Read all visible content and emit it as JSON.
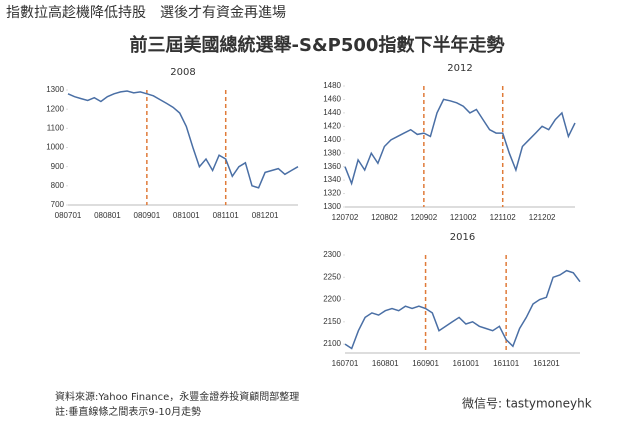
{
  "headline": "指數拉高趁機降低持股　選後才有資金再進場",
  "title": "前三屆美國總統選舉-S&P500指數下半年走勢",
  "footnotes": [
    "資料來源:Yahoo Finance，永豐金證券投資顧問部整理",
    "註:垂直線條之間表示9-10月走勢"
  ],
  "watermark": "微信号: tastymoneyhk",
  "chart_data": [
    {
      "type": "line",
      "title": "2008",
      "color": "#4a6fa5",
      "vline_color": "#e07b39",
      "vlines": [
        12,
        24
      ],
      "categories": [
        "080701",
        null,
        null,
        null,
        null,
        null,
        "080801",
        null,
        null,
        null,
        null,
        null,
        "080901",
        null,
        null,
        null,
        null,
        null,
        "081001",
        null,
        null,
        null,
        null,
        null,
        "081101",
        null,
        null,
        null,
        null,
        null,
        "081201",
        null,
        null,
        null,
        null,
        null
      ],
      "values": [
        1280,
        1265,
        1255,
        1245,
        1260,
        1240,
        1265,
        1280,
        1290,
        1295,
        1285,
        1290,
        1280,
        1270,
        1250,
        1230,
        1210,
        1180,
        1110,
        1000,
        900,
        940,
        880,
        960,
        940,
        850,
        900,
        920,
        800,
        790,
        870,
        880,
        890,
        860,
        880,
        900
      ],
      "ylim": [
        700,
        1300
      ],
      "yticks": [
        700,
        800,
        900,
        1000,
        1100,
        1200,
        1300
      ]
    },
    {
      "type": "line",
      "title": "2012",
      "color": "#4a6fa5",
      "vline_color": "#e07b39",
      "vlines": [
        12,
        24
      ],
      "categories": [
        "120702",
        null,
        null,
        null,
        null,
        null,
        "120802",
        null,
        null,
        null,
        null,
        null,
        "120902",
        null,
        null,
        null,
        null,
        null,
        "121002",
        null,
        null,
        null,
        null,
        null,
        "121102",
        null,
        null,
        null,
        null,
        null,
        "121202",
        null,
        null,
        null,
        null,
        null
      ],
      "values": [
        1360,
        1335,
        1370,
        1355,
        1380,
        1365,
        1390,
        1400,
        1405,
        1410,
        1415,
        1408,
        1410,
        1405,
        1440,
        1460,
        1458,
        1455,
        1450,
        1440,
        1445,
        1430,
        1415,
        1410,
        1410,
        1380,
        1355,
        1390,
        1400,
        1410,
        1420,
        1415,
        1430,
        1440,
        1405,
        1425
      ],
      "ylim": [
        1300,
        1480
      ],
      "yticks": [
        1300,
        1320,
        1340,
        1360,
        1380,
        1400,
        1420,
        1440,
        1460,
        1480
      ]
    },
    {
      "type": "line",
      "title": "2016",
      "color": "#4a6fa5",
      "vline_color": "#e07b39",
      "vlines": [
        12,
        24
      ],
      "categories": [
        "160701",
        null,
        null,
        null,
        null,
        null,
        "160801",
        null,
        null,
        null,
        null,
        null,
        "160901",
        null,
        null,
        null,
        null,
        null,
        "161001",
        null,
        null,
        null,
        null,
        null,
        "161101",
        null,
        null,
        null,
        null,
        null,
        "161201",
        null,
        null,
        null,
        null,
        null
      ],
      "values": [
        2100,
        2090,
        2130,
        2160,
        2170,
        2165,
        2175,
        2180,
        2175,
        2185,
        2180,
        2185,
        2180,
        2170,
        2130,
        2140,
        2150,
        2160,
        2145,
        2150,
        2140,
        2135,
        2130,
        2140,
        2110,
        2095,
        2135,
        2160,
        2190,
        2200,
        2205,
        2250,
        2255,
        2265,
        2260,
        2240
      ],
      "ylim": [
        2080,
        2300
      ],
      "yticks": [
        2100,
        2150,
        2200,
        2250,
        2300
      ]
    }
  ]
}
